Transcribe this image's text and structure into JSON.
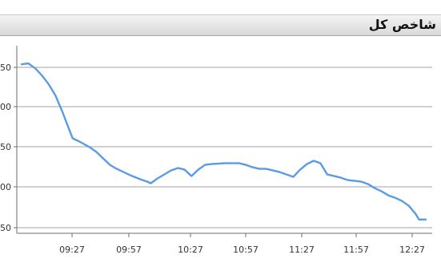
{
  "chart_data": {
    "type": "line",
    "title": "شاخص کل",
    "xlabel": "",
    "ylabel": "",
    "x_ticks": [
      "09:27",
      "09:57",
      "10:27",
      "10:57",
      "11:27",
      "11:57",
      "12:27"
    ],
    "y_ticks": [
      "50",
      "00",
      "50",
      "00",
      "50"
    ],
    "grid": true,
    "legend": "none",
    "line_color": "#5b9be6",
    "grid_color": "#a0a0a0",
    "series": [
      {
        "values": [
          [
            0,
            255
          ],
          [
            2,
            256
          ],
          [
            4,
            250
          ],
          [
            6,
            241
          ],
          [
            8,
            230
          ],
          [
            10,
            216
          ],
          [
            12,
            196
          ],
          [
            14,
            174
          ],
          [
            15,
            163
          ],
          [
            17,
            159
          ],
          [
            20,
            152
          ],
          [
            22,
            146
          ],
          [
            24,
            138
          ],
          [
            26,
            130
          ],
          [
            28,
            125
          ],
          [
            30,
            121
          ],
          [
            32,
            117
          ],
          [
            35,
            112
          ],
          [
            37,
            109
          ],
          [
            38,
            107
          ],
          [
            40,
            113
          ],
          [
            42,
            118
          ],
          [
            44,
            123
          ],
          [
            46,
            126
          ],
          [
            48,
            124
          ],
          [
            50,
            116
          ],
          [
            52,
            124
          ],
          [
            54,
            130
          ],
          [
            56,
            131
          ],
          [
            60,
            132
          ],
          [
            64,
            132
          ],
          [
            66,
            130
          ],
          [
            68,
            127
          ],
          [
            70,
            125
          ],
          [
            72,
            125
          ],
          [
            74,
            123
          ],
          [
            76,
            121
          ],
          [
            78,
            118
          ],
          [
            80,
            115
          ],
          [
            82,
            124
          ],
          [
            84,
            131
          ],
          [
            86,
            135
          ],
          [
            88,
            132
          ],
          [
            90,
            118
          ],
          [
            92,
            116
          ],
          [
            94,
            114
          ],
          [
            96,
            111
          ],
          [
            98,
            110
          ],
          [
            100,
            109
          ],
          [
            102,
            106
          ],
          [
            104,
            101
          ],
          [
            106,
            97
          ],
          [
            108,
            92
          ],
          [
            110,
            89
          ],
          [
            112,
            85
          ],
          [
            114,
            79
          ],
          [
            116,
            69
          ],
          [
            117,
            62
          ],
          [
            119,
            62
          ]
        ]
      }
    ]
  }
}
